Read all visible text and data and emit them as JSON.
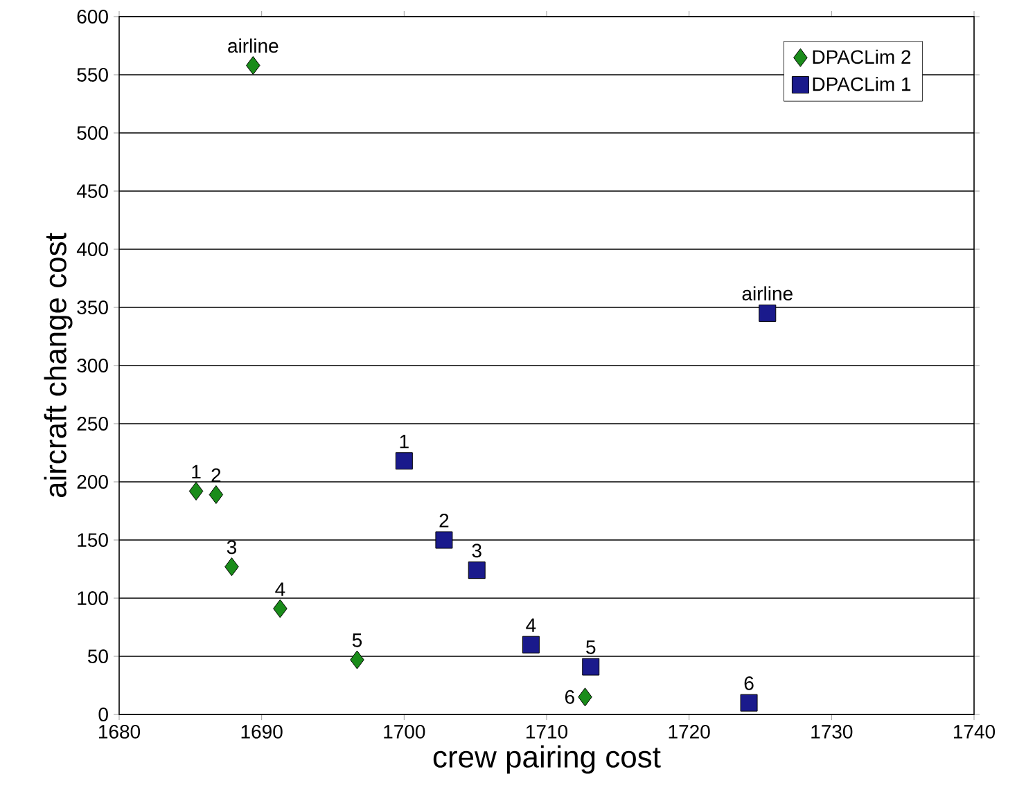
{
  "chart_data": {
    "type": "scatter",
    "xlabel": "crew pairing cost",
    "ylabel": "aircraft change cost",
    "xlim": [
      1680,
      1740
    ],
    "xticks": [
      1680,
      1690,
      1700,
      1710,
      1720,
      1730,
      1740
    ],
    "ylim": [
      0,
      600
    ],
    "yticks": [
      0,
      50,
      100,
      150,
      200,
      250,
      300,
      350,
      400,
      450,
      500,
      550,
      600
    ],
    "grid": "y",
    "legend": "top right",
    "series": [
      {
        "name": "DPACLim 2",
        "color": "#1a8c1a",
        "marker": "diamond",
        "x": [
          1689.4,
          1685.4,
          1686.8,
          1687.9,
          1691.3,
          1696.7,
          1712.7
        ],
        "values": [
          558,
          192,
          189,
          127,
          91,
          47,
          15
        ]
      },
      {
        "name": "DPACLim 1",
        "color": "#1a1a8c",
        "marker": "square",
        "x": [
          1725.5,
          1700.0,
          1702.8,
          1705.1,
          1708.9,
          1713.1,
          1724.2
        ],
        "values": [
          345,
          218,
          150,
          124,
          60,
          41,
          10
        ]
      }
    ],
    "annotations": [
      {
        "text": "airline",
        "x": 1689.4,
        "y": 558
      },
      {
        "text": "1",
        "x": 1685.4,
        "y": 192
      },
      {
        "text": "2",
        "x": 1686.8,
        "y": 189
      },
      {
        "text": "3",
        "x": 1687.9,
        "y": 127
      },
      {
        "text": "4",
        "x": 1691.3,
        "y": 91
      },
      {
        "text": "5",
        "x": 1696.7,
        "y": 47
      },
      {
        "text": "6",
        "x": 1712.7,
        "y": 15
      },
      {
        "text": "airline",
        "x": 1725.5,
        "y": 345
      },
      {
        "text": "1",
        "x": 1700.0,
        "y": 218
      },
      {
        "text": "2",
        "x": 1702.8,
        "y": 150
      },
      {
        "text": "3",
        "x": 1705.1,
        "y": 124
      },
      {
        "text": "4",
        "x": 1708.9,
        "y": 60
      },
      {
        "text": "5",
        "x": 1713.1,
        "y": 41
      },
      {
        "text": "6",
        "x": 1724.2,
        "y": 10
      }
    ]
  }
}
